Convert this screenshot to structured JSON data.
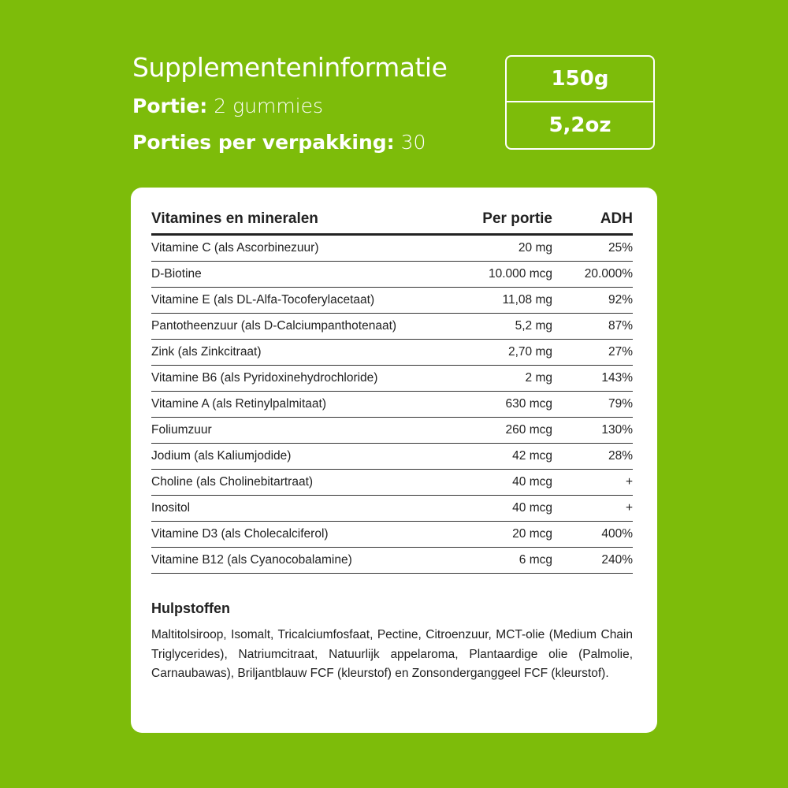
{
  "header": {
    "title": "Supplementeninformatie",
    "serving_label": "Portie:",
    "serving_value": "2 gummies",
    "servings_label": "Porties per verpakking:",
    "servings_value": "30",
    "weight_g": "150g",
    "weight_oz": "5,2oz"
  },
  "table": {
    "headers": [
      "Vitamines en mineralen",
      "Per portie",
      "ADH"
    ],
    "rows": [
      [
        "Vitamine C (als Ascorbinezuur)",
        "20 mg",
        "25%"
      ],
      [
        "D-Biotine",
        "10.000 mcg",
        "20.000%"
      ],
      [
        "Vitamine E (als DL-Alfa-Tocoferylacetaat)",
        "11,08 mg",
        "92%"
      ],
      [
        "Pantotheenzuur (als D-Calciumpanthotenaat)",
        "5,2 mg",
        "87%"
      ],
      [
        "Zink (als Zinkcitraat)",
        "2,70 mg",
        "27%"
      ],
      [
        "Vitamine B6 (als Pyridoxinehydrochloride)",
        "2 mg",
        "143%"
      ],
      [
        "Vitamine A (als Retinylpalmitaat)",
        "630 mcg",
        "79%"
      ],
      [
        "Foliumzuur",
        "260 mcg",
        "130%"
      ],
      [
        "Jodium (als Kaliumjodide)",
        "42 mcg",
        "28%"
      ],
      [
        "Choline (als Cholinebitartraat)",
        "40 mcg",
        "+"
      ],
      [
        "Inositol",
        "40 mcg",
        "+"
      ],
      [
        "Vitamine D3 (als Cholecalciferol)",
        "20 mcg",
        "400%"
      ],
      [
        "Vitamine B12 (als Cyanocobalamine)",
        "6 mcg",
        "240%"
      ]
    ]
  },
  "excipients": {
    "title": "Hulpstoffen",
    "text": "Maltitolsiroop, Isomalt, Tricalciumfosfaat, Pectine, Citroenzuur, MCT-olie (Medium Chain Triglycerides), Natriumcitraat, Natuurlijk appelaroma, Plantaardige olie (Palmolie, Carnaubawas), Briljantblauw FCF (kleurstof) en Zonsonderganggeel FCF (kleurstof)."
  },
  "colors": {
    "background": "#7dbc0a",
    "card": "#ffffff",
    "text": "#222222"
  }
}
